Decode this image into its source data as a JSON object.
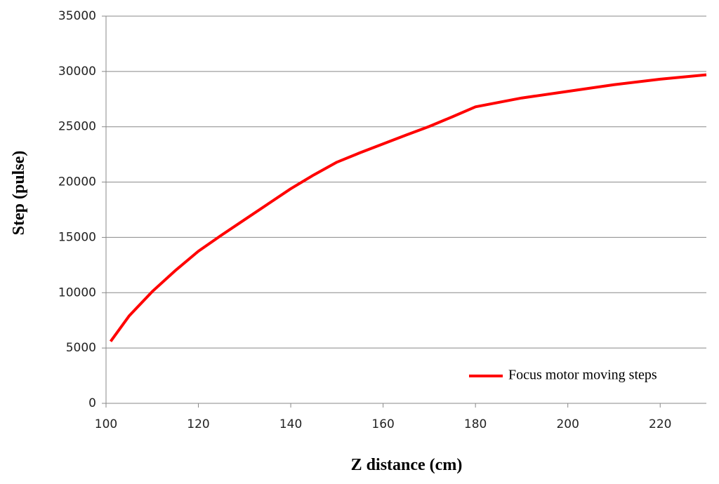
{
  "chart_data": {
    "type": "line",
    "x_label": "Z distance (cm)",
    "y_label": "Step (pulse)",
    "x": [
      101,
      105,
      110,
      115,
      120,
      125,
      130,
      135,
      140,
      145,
      150,
      155,
      160,
      165,
      170,
      175,
      180,
      190,
      200,
      210,
      220,
      230
    ],
    "series": [
      {
        "name": "Focus motor moving steps",
        "color": "#ff0000",
        "values": [
          5600,
          7900,
          10100,
          12000,
          13750,
          15200,
          16600,
          18000,
          19400,
          20650,
          21800,
          22650,
          23450,
          24250,
          25030,
          25900,
          26800,
          27600,
          28200,
          28800,
          29300,
          29700
        ]
      }
    ],
    "xlim": [
      100,
      230
    ],
    "xticks": [
      100,
      120,
      140,
      160,
      180,
      200,
      220
    ],
    "ylim": [
      0,
      35000
    ],
    "yticks": [
      0,
      5000,
      10000,
      15000,
      20000,
      25000,
      30000,
      35000
    ],
    "grid": true,
    "legend": "lower right"
  }
}
